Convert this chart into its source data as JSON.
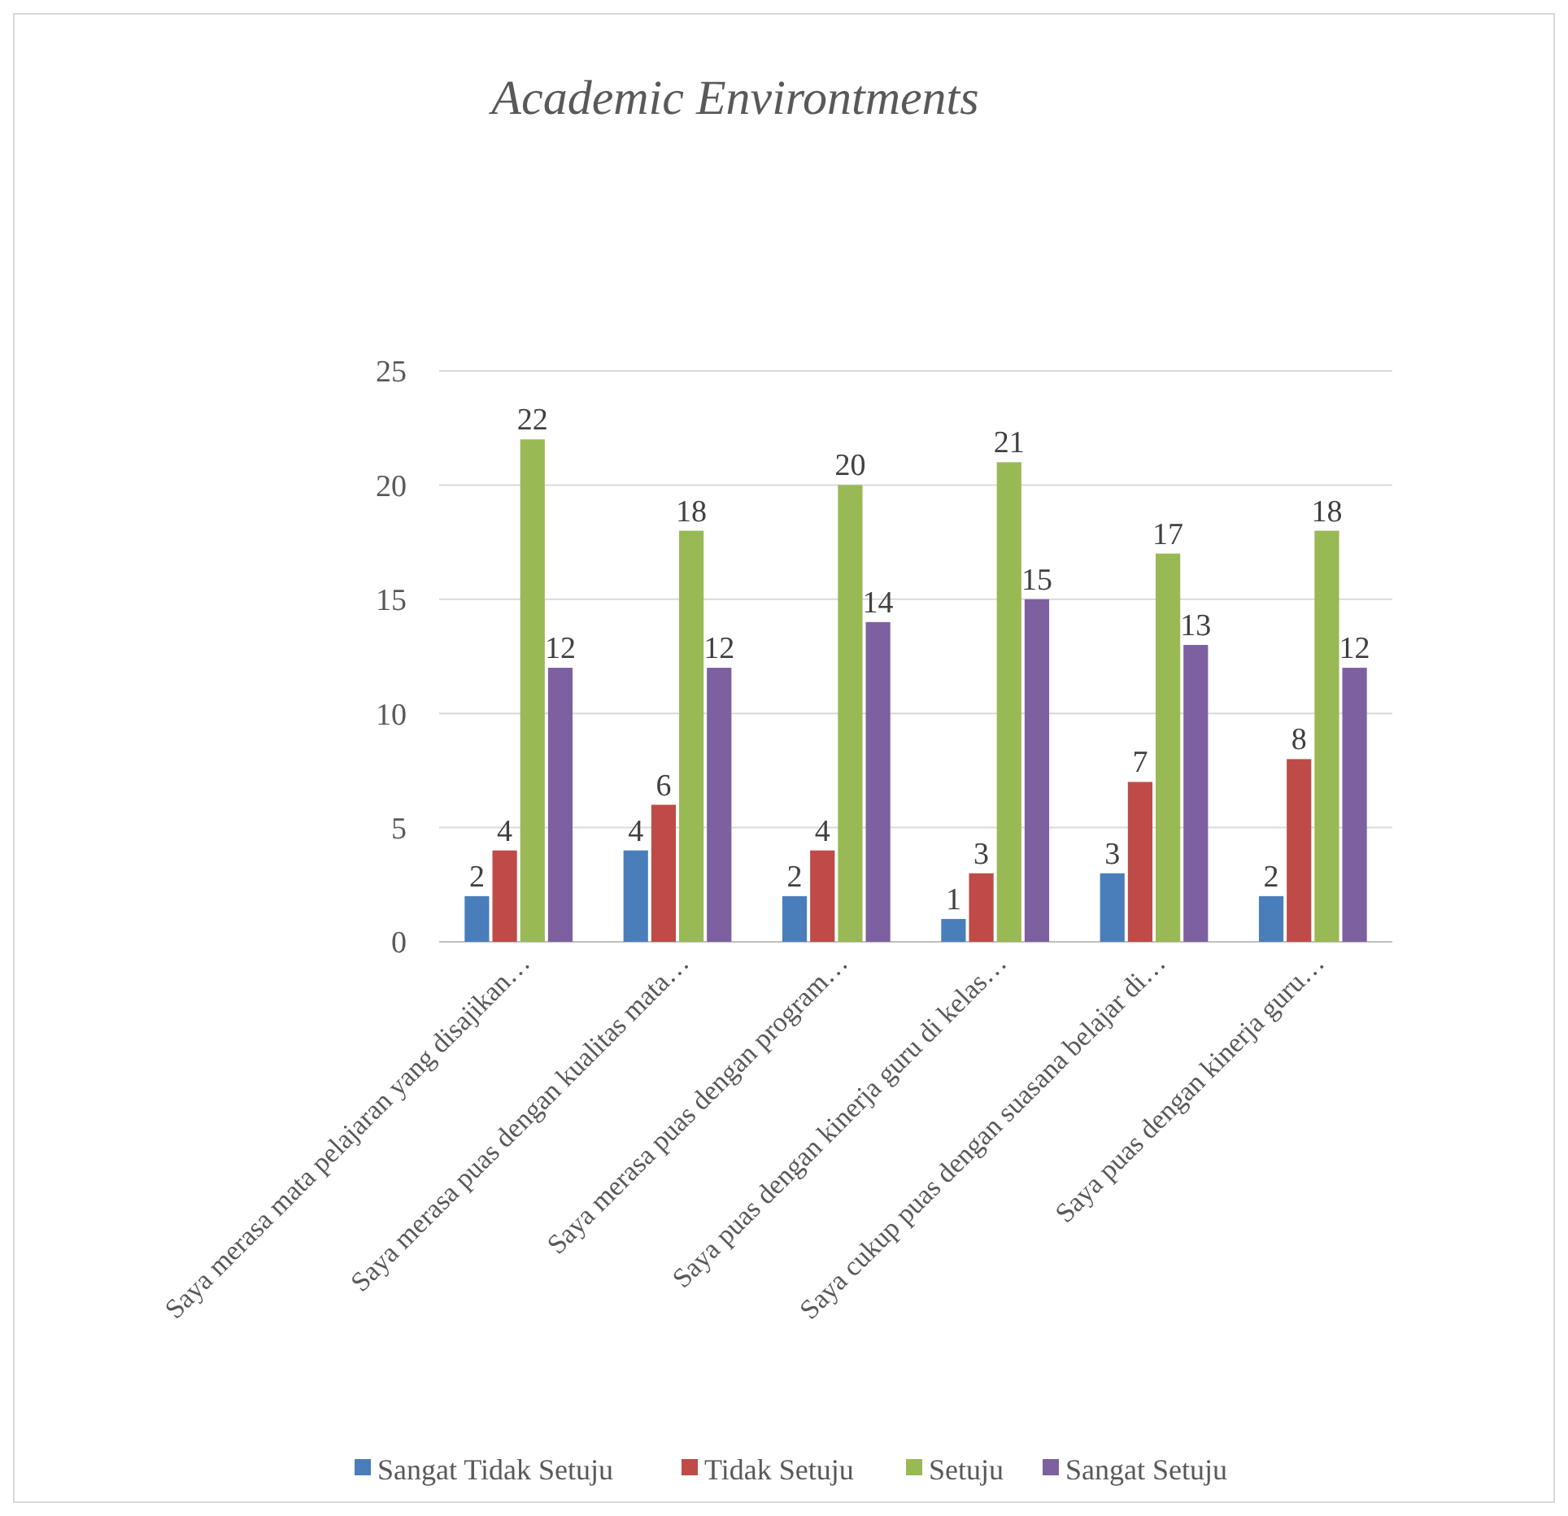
{
  "chart_data": {
    "type": "bar",
    "title": "Academic Environtments",
    "categories": [
      "Saya merasa mata pelajaran yang disajikan…",
      "Saya merasa puas dengan kualitas mata…",
      "Saya merasa puas dengan program…",
      "Saya puas dengan kinerja guru di kelas…",
      "Saya cukup puas dengan suasana belajar di…",
      "Saya puas dengan kinerja guru…"
    ],
    "series": [
      {
        "name": "Sangat Tidak Setuju",
        "color": "#4a7ebb",
        "values": [
          2,
          4,
          2,
          1,
          3,
          2
        ]
      },
      {
        "name": "Tidak Setuju",
        "color": "#be4b48",
        "values": [
          4,
          6,
          4,
          3,
          7,
          8
        ]
      },
      {
        "name": "Setuju",
        "color": "#98b954",
        "values": [
          22,
          18,
          20,
          21,
          17,
          18
        ]
      },
      {
        "name": "Sangat Setuju",
        "color": "#7d60a0",
        "values": [
          12,
          12,
          14,
          15,
          13,
          12
        ]
      }
    ],
    "ylim": [
      0,
      25
    ],
    "yticks": [
      0,
      5,
      10,
      15,
      20,
      25
    ],
    "grid": "y",
    "data_labels": true,
    "legend": "bottom"
  }
}
